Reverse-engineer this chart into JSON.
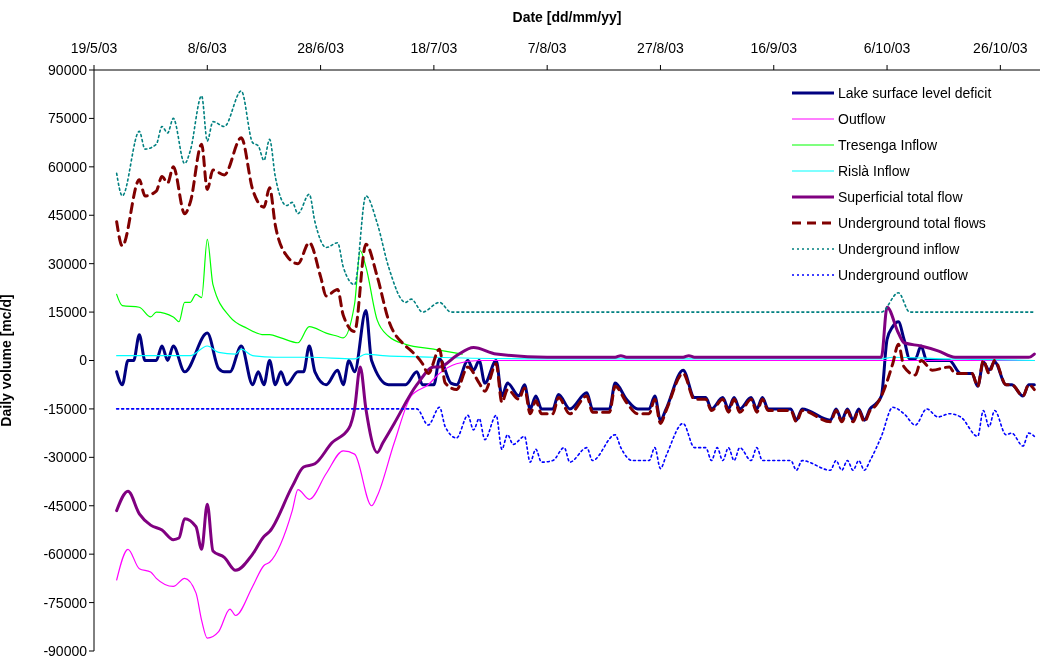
{
  "chart_data": {
    "type": "line",
    "xlabel": "Date [dd/mm/yy]",
    "ylabel": "Daily volume [mc/d]",
    "xlim": [
      "2003-05-19",
      "2003-11-02"
    ],
    "xticks": [
      {
        "value": "2003-05-19",
        "label": "19/5/03"
      },
      {
        "value": "2003-06-08",
        "label": "8/6/03"
      },
      {
        "value": "2003-06-28",
        "label": "28/6/03"
      },
      {
        "value": "2003-07-18",
        "label": "18/7/03"
      },
      {
        "value": "2003-08-07",
        "label": "7/8/03"
      },
      {
        "value": "2003-08-27",
        "label": "27/8/03"
      },
      {
        "value": "2003-09-16",
        "label": "16/9/03"
      },
      {
        "value": "2003-10-06",
        "label": "6/10/03"
      },
      {
        "value": "2003-10-26",
        "label": "26/10/03"
      }
    ],
    "ylim": [
      -90000,
      90000
    ],
    "yticks": [
      -90000,
      -75000,
      -60000,
      -45000,
      -30000,
      -15000,
      0,
      15000,
      30000,
      45000,
      60000,
      75000,
      90000
    ],
    "legend": "top right",
    "series": [
      {
        "name": "Lake surface level deficit",
        "color": "#000080",
        "line_style": "solid",
        "x": [
          "2003-05-23",
          "2003-05-24",
          "2003-05-25",
          "2003-05-26",
          "2003-05-27",
          "2003-05-28",
          "2003-05-30",
          "2003-05-31",
          "2003-06-01",
          "2003-06-02",
          "2003-06-04",
          "2003-06-08",
          "2003-06-10",
          "2003-06-11",
          "2003-06-12",
          "2003-06-14",
          "2003-06-16",
          "2003-06-17",
          "2003-06-18",
          "2003-06-19",
          "2003-06-20",
          "2003-06-21",
          "2003-06-22",
          "2003-06-24",
          "2003-06-25",
          "2003-06-26",
          "2003-06-27",
          "2003-06-29",
          "2003-07-01",
          "2003-07-02",
          "2003-07-03",
          "2003-07-04",
          "2003-07-06",
          "2003-07-07",
          "2003-07-10",
          "2003-07-13",
          "2003-07-15",
          "2003-07-16",
          "2003-07-18",
          "2003-07-19",
          "2003-07-21",
          "2003-07-22",
          "2003-07-24",
          "2003-07-25",
          "2003-07-26",
          "2003-07-27",
          "2003-07-29",
          "2003-07-30",
          "2003-07-31",
          "2003-08-02",
          "2003-08-03",
          "2003-08-04",
          "2003-08-05",
          "2003-08-06",
          "2003-08-08",
          "2003-08-09",
          "2003-08-11",
          "2003-08-14",
          "2003-08-15",
          "2003-08-18",
          "2003-08-19",
          "2003-08-21",
          "2003-08-23",
          "2003-08-25",
          "2003-08-26",
          "2003-08-27",
          "2003-08-28",
          "2003-08-31",
          "2003-09-02",
          "2003-09-04",
          "2003-09-05",
          "2003-09-07",
          "2003-09-08",
          "2003-09-09",
          "2003-09-10",
          "2003-09-12",
          "2003-09-13",
          "2003-09-14",
          "2003-09-15",
          "2003-09-19",
          "2003-09-20",
          "2003-09-21",
          "2003-09-26",
          "2003-09-27",
          "2003-09-28",
          "2003-09-29",
          "2003-09-30",
          "2003-10-01",
          "2003-10-02",
          "2003-10-03",
          "2003-10-04",
          "2003-10-05",
          "2003-10-06",
          "2003-10-07",
          "2003-10-08",
          "2003-10-09",
          "2003-10-10",
          "2003-10-11",
          "2003-10-12",
          "2003-10-13",
          "2003-10-17",
          "2003-10-19",
          "2003-10-21",
          "2003-10-22",
          "2003-10-23",
          "2003-10-24",
          "2003-10-25",
          "2003-10-27",
          "2003-10-28",
          "2003-10-30",
          "2003-10-31",
          "2003-11-01"
        ],
        "values": [
          -3500,
          -7500,
          0,
          0,
          8000,
          0,
          0,
          4500,
          0,
          4500,
          -3500,
          8500,
          -2500,
          -3500,
          -3500,
          4500,
          -7500,
          -3500,
          -7500,
          0,
          -7500,
          -3500,
          -7500,
          -3500,
          -3500,
          4500,
          -3500,
          -7500,
          -3000,
          -7500,
          0,
          -3500,
          15500,
          0,
          -7500,
          -7500,
          -3500,
          -7500,
          -7500,
          500,
          -7000,
          -7500,
          0,
          -3000,
          0,
          -7000,
          0,
          -11000,
          -7000,
          -11000,
          -7500,
          -15000,
          -11000,
          -15000,
          -15000,
          -10500,
          -15000,
          -10000,
          -15000,
          -15000,
          -7000,
          -12000,
          -15000,
          -15000,
          -11000,
          -18500,
          -15000,
          -3000,
          -11500,
          -11500,
          -15000,
          -11500,
          -15000,
          -11500,
          -15000,
          -11500,
          -15000,
          -11500,
          -15000,
          -15000,
          -18500,
          -15000,
          -18500,
          -15000,
          -18500,
          -15000,
          -18500,
          -15000,
          -18500,
          -15000,
          -13500,
          -11000,
          6500,
          10500,
          12000,
          6500,
          500,
          500,
          4500,
          0,
          0,
          -4000,
          -4000,
          -8000,
          -500,
          -3000,
          -500,
          -7500,
          -7500,
          -11000,
          -7500,
          -7500
        ]
      },
      {
        "name": "Outflow",
        "color": "#ff00ff",
        "line_style": "solid",
        "x": [
          "2003-05-23",
          "2003-05-25",
          "2003-05-27",
          "2003-05-29",
          "2003-05-30",
          "2003-06-02",
          "2003-06-04",
          "2003-06-06",
          "2003-06-07",
          "2003-06-08",
          "2003-06-10",
          "2003-06-12",
          "2003-06-13",
          "2003-06-16",
          "2003-06-18",
          "2003-06-19",
          "2003-06-23",
          "2003-06-24",
          "2003-06-26",
          "2003-06-29",
          "2003-07-02",
          "2003-07-04",
          "2003-07-07",
          "2003-07-08",
          "2003-07-11",
          "2003-07-14",
          "2003-07-17",
          "2003-07-19",
          "2003-07-22",
          "2003-07-26",
          "2003-11-01"
        ],
        "values": [
          -68000,
          -58500,
          -64500,
          -65500,
          -67500,
          -70000,
          -67500,
          -72000,
          -80500,
          -86000,
          -84000,
          -77000,
          -79000,
          -70000,
          -63500,
          -62500,
          -46500,
          -40000,
          -43000,
          -35000,
          -28000,
          -29000,
          -45000,
          -42000,
          -25500,
          -11000,
          -7500,
          -4000,
          -1000,
          0,
          0
        ]
      },
      {
        "name": "Tresenga Inflow",
        "color": "#00ff00",
        "line_style": "solid",
        "x": [
          "2003-05-23",
          "2003-05-24",
          "2003-05-27",
          "2003-05-29",
          "2003-05-30",
          "2003-06-02",
          "2003-06-03",
          "2003-06-04",
          "2003-06-05",
          "2003-06-06",
          "2003-06-07",
          "2003-06-08",
          "2003-06-09",
          "2003-06-12",
          "2003-06-15",
          "2003-06-18",
          "2003-06-19",
          "2003-06-21",
          "2003-06-24",
          "2003-06-26",
          "2003-06-29",
          "2003-07-01",
          "2003-07-02",
          "2003-07-04",
          "2003-07-05",
          "2003-07-06",
          "2003-07-08",
          "2003-07-10",
          "2003-07-13",
          "2003-07-18",
          "2003-07-23"
        ],
        "values": [
          20500,
          17000,
          16500,
          13500,
          15000,
          13500,
          12000,
          18000,
          18000,
          20500,
          19500,
          37500,
          23500,
          13500,
          10000,
          8000,
          8000,
          7000,
          5500,
          10500,
          8500,
          7500,
          7000,
          17500,
          34000,
          29000,
          12500,
          7500,
          5000,
          3500,
          2000
        ]
      },
      {
        "name": "Rislà Inflow",
        "color": "#00ffff",
        "line_style": "solid",
        "x": [
          "2003-05-23",
          "2003-06-05",
          "2003-06-08",
          "2003-06-10",
          "2003-06-13",
          "2003-06-14",
          "2003-06-16",
          "2003-06-20",
          "2003-06-26",
          "2003-07-04",
          "2003-07-06",
          "2003-07-09",
          "2003-07-18",
          "2003-08-07",
          "2003-10-05",
          "2003-10-07",
          "2003-10-16",
          "2003-11-01"
        ],
        "values": [
          1500,
          1500,
          4500,
          2500,
          2000,
          3500,
          1500,
          1000,
          1000,
          500,
          2000,
          1500,
          1000,
          500,
          500,
          1000,
          500,
          0
        ]
      },
      {
        "name": "Superficial total flow",
        "color": "#800080",
        "line_style": "solid",
        "x": [
          "2003-05-23",
          "2003-05-25",
          "2003-05-27",
          "2003-05-29",
          "2003-05-31",
          "2003-06-02",
          "2003-06-03",
          "2003-06-04",
          "2003-06-06",
          "2003-06-07",
          "2003-06-08",
          "2003-06-09",
          "2003-06-11",
          "2003-06-13",
          "2003-06-16",
          "2003-06-18",
          "2003-06-19",
          "2003-06-23",
          "2003-06-25",
          "2003-06-27",
          "2003-06-30",
          "2003-07-03",
          "2003-07-04",
          "2003-07-05",
          "2003-07-06",
          "2003-07-08",
          "2003-07-09",
          "2003-07-11",
          "2003-07-15",
          "2003-07-18",
          "2003-07-19",
          "2003-07-22",
          "2003-07-25",
          "2003-07-29",
          "2003-08-07",
          "2003-08-19",
          "2003-08-20",
          "2003-08-21",
          "2003-08-31",
          "2003-09-01",
          "2003-09-02",
          "2003-10-05",
          "2003-10-06",
          "2003-10-08",
          "2003-10-09",
          "2003-10-12",
          "2003-10-15",
          "2003-10-18",
          "2003-10-31",
          "2003-11-01"
        ],
        "values": [
          -46500,
          -40500,
          -47500,
          -51000,
          -52500,
          -55500,
          -55000,
          -49000,
          -51500,
          -58500,
          -44500,
          -59000,
          -61000,
          -65000,
          -60000,
          -54500,
          -53000,
          -39000,
          -33000,
          -32000,
          -25500,
          -21000,
          -15000,
          -2000,
          -15000,
          -28500,
          -25500,
          -19500,
          -7500,
          -2000,
          -2000,
          1500,
          4000,
          2000,
          1000,
          1000,
          1500,
          1000,
          1000,
          1500,
          1000,
          1000,
          16500,
          8500,
          5500,
          4500,
          3000,
          1000,
          1000,
          2000
        ]
      },
      {
        "name": "Underground total flows",
        "color": "#800000",
        "line_style": "dashed",
        "x": [
          "2003-05-23",
          "2003-05-24",
          "2003-05-27",
          "2003-05-28",
          "2003-05-30",
          "2003-05-31",
          "2003-06-01",
          "2003-06-02",
          "2003-06-04",
          "2003-06-05",
          "2003-06-07",
          "2003-06-08",
          "2003-06-09",
          "2003-06-11",
          "2003-06-14",
          "2003-06-16",
          "2003-06-18",
          "2003-06-19",
          "2003-06-20",
          "2003-06-22",
          "2003-06-24",
          "2003-06-26",
          "2003-06-28",
          "2003-06-29",
          "2003-07-01",
          "2003-07-02",
          "2003-07-04",
          "2003-07-06",
          "2003-07-08",
          "2003-07-10",
          "2003-07-13",
          "2003-07-14",
          "2003-07-16",
          "2003-07-17",
          "2003-07-19",
          "2003-07-20",
          "2003-07-22",
          "2003-07-24",
          "2003-07-26",
          "2003-07-27",
          "2003-07-29",
          "2003-07-30",
          "2003-07-31",
          "2003-08-02",
          "2003-08-03",
          "2003-08-04",
          "2003-08-05",
          "2003-08-06",
          "2003-08-08",
          "2003-08-09",
          "2003-08-11",
          "2003-08-14",
          "2003-08-15",
          "2003-08-18",
          "2003-08-19",
          "2003-08-21",
          "2003-08-23",
          "2003-08-25",
          "2003-08-26",
          "2003-08-27",
          "2003-08-28",
          "2003-08-31",
          "2003-09-02",
          "2003-09-04",
          "2003-09-05",
          "2003-09-07",
          "2003-09-08",
          "2003-09-09",
          "2003-09-10",
          "2003-09-12",
          "2003-09-13",
          "2003-09-14",
          "2003-09-15",
          "2003-09-19",
          "2003-09-20",
          "2003-09-21",
          "2003-09-26",
          "2003-09-27",
          "2003-09-28",
          "2003-09-29",
          "2003-09-30",
          "2003-10-01",
          "2003-10-02",
          "2003-10-03",
          "2003-10-04",
          "2003-10-05",
          "2003-10-07",
          "2003-10-08",
          "2003-10-09",
          "2003-10-11",
          "2003-10-12",
          "2003-10-14",
          "2003-10-17",
          "2003-10-18",
          "2003-10-21",
          "2003-10-22",
          "2003-10-23",
          "2003-10-24",
          "2003-10-25",
          "2003-10-27",
          "2003-10-28",
          "2003-10-30",
          "2003-10-31",
          "2003-11-01"
        ],
        "values": [
          43000,
          35500,
          56000,
          51000,
          52500,
          57000,
          55000,
          60000,
          45500,
          49000,
          67000,
          53000,
          59000,
          57500,
          69000,
          53000,
          47500,
          53500,
          42000,
          32500,
          30000,
          36500,
          26000,
          20000,
          22000,
          14000,
          9000,
          36000,
          26000,
          12500,
          4500,
          3000,
          -1000,
          -4000,
          3500,
          -7000,
          -9000,
          -2000,
          -7000,
          -9500,
          -1000,
          -13000,
          -9000,
          -12000,
          -8500,
          -16500,
          -12500,
          -16500,
          -16500,
          -11500,
          -16500,
          -11000,
          -16000,
          -16000,
          -8000,
          -13000,
          -16500,
          -16500,
          -12000,
          -19500,
          -15500,
          -4000,
          -12000,
          -12000,
          -15500,
          -12000,
          -16000,
          -12000,
          -16000,
          -12000,
          -16000,
          -12000,
          -15500,
          -15500,
          -19000,
          -15500,
          -19000,
          -15500,
          -19000,
          -15500,
          -19000,
          -15500,
          -19000,
          -15500,
          -14000,
          -11000,
          -1000,
          5000,
          -2000,
          -4500,
          0,
          -3000,
          -2000,
          -4000,
          -4000,
          -8000,
          0,
          -4000,
          0,
          -7500,
          -7500,
          -11000,
          -7500,
          -9000
        ]
      },
      {
        "name": "Underground inflow",
        "color": "#008080",
        "line_style": "dotted",
        "x": [
          "2003-05-23",
          "2003-05-24",
          "2003-05-27",
          "2003-05-28",
          "2003-05-30",
          "2003-05-31",
          "2003-06-01",
          "2003-06-02",
          "2003-06-04",
          "2003-06-05",
          "2003-06-07",
          "2003-06-08",
          "2003-06-09",
          "2003-06-11",
          "2003-06-14",
          "2003-06-16",
          "2003-06-17",
          "2003-06-18",
          "2003-06-19",
          "2003-06-20",
          "2003-06-22",
          "2003-06-23",
          "2003-06-24",
          "2003-06-26",
          "2003-06-27",
          "2003-06-29",
          "2003-07-01",
          "2003-07-02",
          "2003-07-04",
          "2003-07-06",
          "2003-07-08",
          "2003-07-10",
          "2003-07-13",
          "2003-07-14",
          "2003-07-16",
          "2003-07-19",
          "2003-07-21",
          "2003-10-05",
          "2003-10-08",
          "2003-10-10",
          "2003-11-01"
        ],
        "values": [
          58000,
          51000,
          71000,
          65500,
          67000,
          72500,
          70500,
          75000,
          61000,
          65000,
          82000,
          68000,
          74000,
          72500,
          83500,
          67500,
          66500,
          62000,
          68500,
          57000,
          48000,
          49000,
          45500,
          51500,
          43000,
          35000,
          36500,
          29000,
          23500,
          51000,
          42500,
          29000,
          18000,
          19000,
          15000,
          18000,
          15000,
          15000,
          21000,
          15000,
          15000
        ]
      },
      {
        "name": "Underground outflow",
        "color": "#0000ff",
        "line_style": "dotted",
        "x": [
          "2003-05-23",
          "2003-07-15",
          "2003-07-17",
          "2003-07-19",
          "2003-07-20",
          "2003-07-22",
          "2003-07-24",
          "2003-07-25",
          "2003-07-26",
          "2003-07-27",
          "2003-07-29",
          "2003-07-30",
          "2003-07-31",
          "2003-08-01",
          "2003-08-03",
          "2003-08-04",
          "2003-08-05",
          "2003-08-06",
          "2003-08-08",
          "2003-08-10",
          "2003-08-11",
          "2003-08-14",
          "2003-08-15",
          "2003-08-19",
          "2003-08-20",
          "2003-08-22",
          "2003-08-25",
          "2003-08-26",
          "2003-08-27",
          "2003-08-28",
          "2003-08-31",
          "2003-09-02",
          "2003-09-04",
          "2003-09-05",
          "2003-09-06",
          "2003-09-07",
          "2003-09-08",
          "2003-09-09",
          "2003-09-10",
          "2003-09-12",
          "2003-09-13",
          "2003-09-14",
          "2003-09-19",
          "2003-09-20",
          "2003-09-21",
          "2003-09-26",
          "2003-09-27",
          "2003-09-28",
          "2003-09-29",
          "2003-09-30",
          "2003-10-01",
          "2003-10-02",
          "2003-10-03",
          "2003-10-05",
          "2003-10-07",
          "2003-10-09",
          "2003-10-11",
          "2003-10-13",
          "2003-10-15",
          "2003-10-17",
          "2003-10-19",
          "2003-10-22",
          "2003-10-23",
          "2003-10-24",
          "2003-10-25",
          "2003-10-27",
          "2003-10-28",
          "2003-10-30",
          "2003-10-31",
          "2003-11-01"
        ],
        "values": [
          -15000,
          -15000,
          -20000,
          -14500,
          -20500,
          -24000,
          -17000,
          -21500,
          -18000,
          -24500,
          -17000,
          -27500,
          -23000,
          -26000,
          -23500,
          -31500,
          -27500,
          -31500,
          -31000,
          -27000,
          -31500,
          -27000,
          -31000,
          -23000,
          -27000,
          -31000,
          -31000,
          -27000,
          -33500,
          -29500,
          -19500,
          -27000,
          -27000,
          -31000,
          -27000,
          -31000,
          -27000,
          -31000,
          -27000,
          -31000,
          -27000,
          -31000,
          -31000,
          -34000,
          -31000,
          -34000,
          -31000,
          -34000,
          -31000,
          -34000,
          -31000,
          -34000,
          -31000,
          -23500,
          -14500,
          -16500,
          -20000,
          -15000,
          -17500,
          -16500,
          -17500,
          -23500,
          -15500,
          -20500,
          -15500,
          -23000,
          -22500,
          -26500,
          -22500,
          -23500
        ]
      }
    ]
  }
}
